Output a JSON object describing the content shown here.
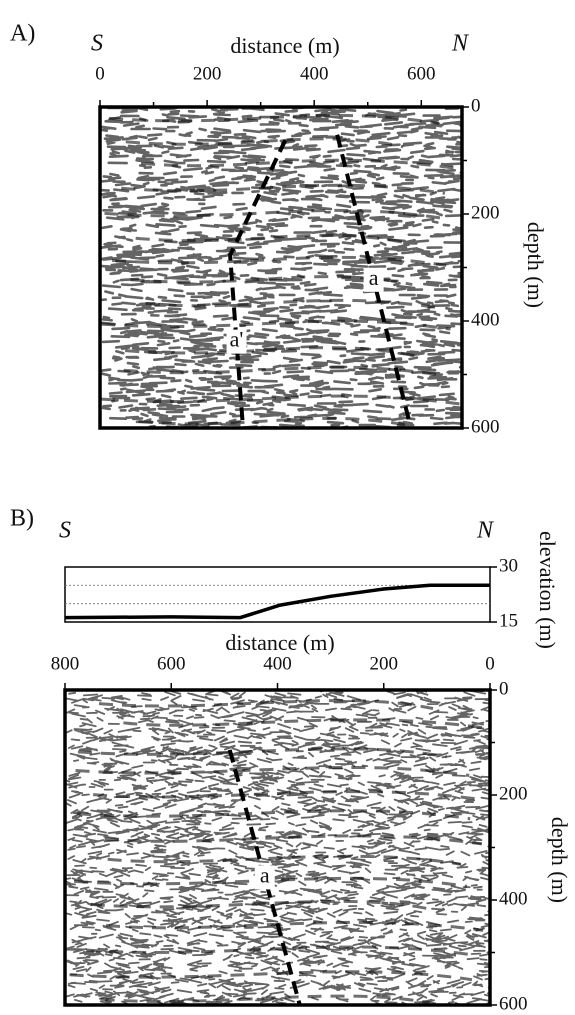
{
  "chart_data": [
    {
      "type": "section",
      "panel_label": "A)",
      "left_label": "S",
      "right_label": "N",
      "x_label": "distance (m)",
      "y_label": "depth (m)",
      "xlim": [
        0,
        676
      ],
      "xticks": [
        0,
        200,
        400,
        600
      ],
      "xminor": [
        100,
        300,
        500
      ],
      "ylim": [
        0,
        600
      ],
      "yticks": [
        0,
        200,
        400,
        600
      ],
      "yminor": [
        100,
        300,
        500
      ],
      "faults": [
        {
          "label": "a'",
          "x": [
            346,
            243,
            267
          ],
          "y": [
            62,
            277,
            600
          ]
        },
        {
          "label": "a",
          "x": [
            443,
            579
          ],
          "y": [
            52,
            594
          ]
        }
      ]
    },
    {
      "type": "line",
      "panel_label": "B)",
      "left_label": "S",
      "right_label": "N",
      "y_label": "elevation (m)",
      "x": [
        800,
        600,
        470,
        395,
        300,
        200,
        113,
        0
      ],
      "values": [
        16.2,
        16.4,
        16.2,
        19.6,
        22,
        24,
        25,
        25
      ],
      "xlim": [
        800,
        0
      ],
      "ylim": [
        15,
        30
      ],
      "yticks": [
        15,
        30
      ],
      "ygrid": [
        20,
        25
      ]
    },
    {
      "type": "section",
      "x_label": "distance (m)",
      "y_label": "depth (m)",
      "xlim": [
        800,
        0
      ],
      "xticks": [
        800,
        600,
        400,
        200,
        0
      ],
      "ylim": [
        0,
        600
      ],
      "yticks": [
        0,
        200,
        400,
        600
      ],
      "yminor": [
        100,
        300,
        500
      ],
      "faults": [
        {
          "label": "a",
          "x": [
            490,
            358
          ],
          "y": [
            114,
            600
          ]
        }
      ]
    }
  ]
}
